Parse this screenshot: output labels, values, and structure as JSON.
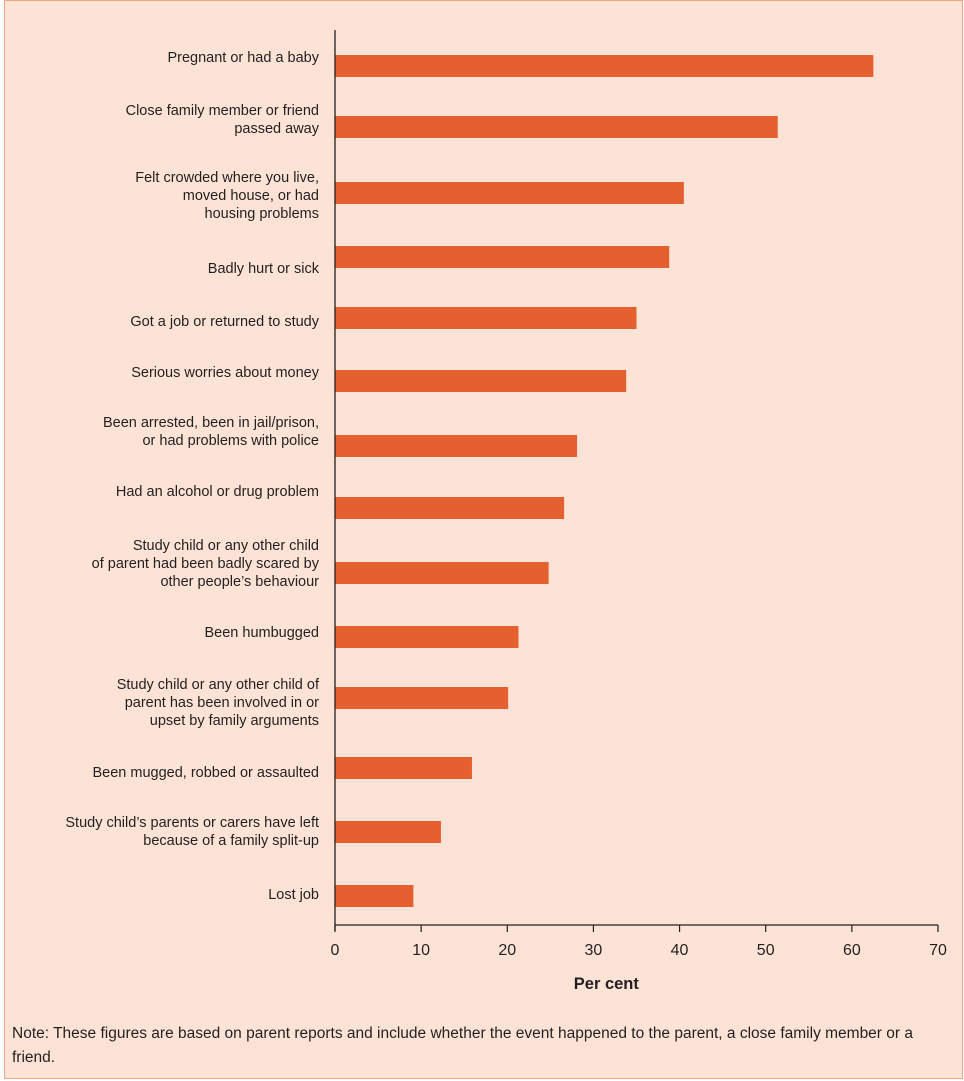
{
  "chart_data": {
    "type": "bar",
    "orientation": "horizontal",
    "categories": [
      [
        "Pregnant or had a baby"
      ],
      [
        "Close family member or friend",
        "passed away"
      ],
      [
        "Felt crowded where you live,",
        "moved house, or had",
        "housing problems"
      ],
      [
        "Badly hurt or sick"
      ],
      [
        "Got a job or returned to study"
      ],
      [
        "Serious worries about money"
      ],
      [
        "Been arrested, been in jail/prison,",
        "or had problems with police"
      ],
      [
        "Had an alcohol or drug problem"
      ],
      [
        "Study child or any other child",
        "of parent had been badly scared by",
        "other people’s behaviour"
      ],
      [
        "Been humbugged"
      ],
      [
        "Study child or any other child of",
        "parent has been involved in or",
        "upset by family arguments"
      ],
      [
        "Been mugged, robbed or assaulted"
      ],
      [
        "Study child’s parents or carers have left",
        "because of a family split-up"
      ],
      [
        "Lost job"
      ]
    ],
    "values": [
      62.5,
      51.4,
      40.5,
      38.8,
      35.0,
      33.8,
      28.1,
      26.6,
      24.8,
      21.3,
      20.1,
      15.9,
      12.3,
      9.1
    ],
    "xlabel": "Per cent",
    "ylabel": "",
    "xlim": [
      0,
      70
    ],
    "xticks": [
      0,
      10,
      20,
      30,
      40,
      50,
      60,
      70
    ],
    "grid": false,
    "legend": "none",
    "bar_color": "#e5602f",
    "background_color": "#fce3d6"
  },
  "note": "Note: These figures are based on parent reports and include whether the event happened to the parent, a close family member or a friend."
}
